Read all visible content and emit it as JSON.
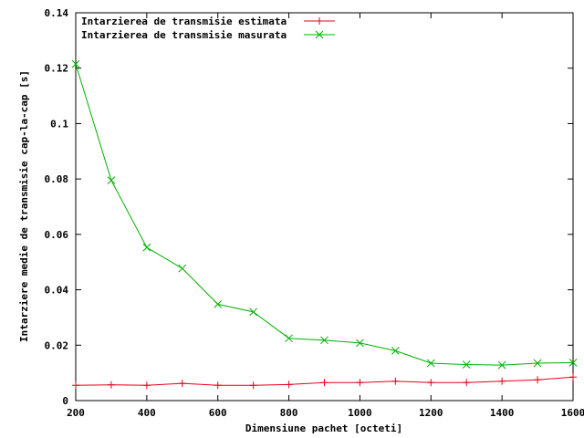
{
  "chart_data": {
    "type": "line",
    "title": "",
    "xlabel": "Dimensiune pachet [octeti]",
    "ylabel": "Intarziere medie de transmisie cap-la-cap [s]",
    "xlim": [
      200,
      1600
    ],
    "ylim": [
      0,
      0.14
    ],
    "x_ticks": [
      200,
      400,
      600,
      800,
      1000,
      1200,
      1400,
      1600
    ],
    "x_tick_labels": [
      "200",
      "400",
      "600",
      "800",
      "1000",
      "1200",
      "1400",
      "1600"
    ],
    "y_ticks": [
      0,
      0.02,
      0.04,
      0.06,
      0.08,
      0.1,
      0.12,
      0.14
    ],
    "y_tick_labels": [
      "0",
      "0.02",
      "0.04",
      "0.06",
      "0.08",
      "0.1",
      "0.12",
      "0.14"
    ],
    "grid": false,
    "legend_position": "top-left",
    "x": [
      200,
      300,
      400,
      500,
      600,
      700,
      800,
      900,
      1000,
      1100,
      1200,
      1300,
      1400,
      1500,
      1600
    ],
    "series": [
      {
        "name": "Intarzierea de transmisie estimata",
        "color": "#e8001c",
        "marker": "plus",
        "values": [
          0.0055,
          0.0057,
          0.0055,
          0.0062,
          0.0055,
          0.0055,
          0.0058,
          0.0065,
          0.0065,
          0.007,
          0.0065,
          0.0065,
          0.007,
          0.0075,
          0.0085
        ]
      },
      {
        "name": "Intarzierea de transmisie masurata",
        "color": "#00b000",
        "marker": "cross",
        "values": [
          0.1215,
          0.0795,
          0.0553,
          0.0477,
          0.0348,
          0.032,
          0.0225,
          0.0218,
          0.0208,
          0.018,
          0.0135,
          0.013,
          0.0128,
          0.0135,
          0.0137
        ]
      }
    ]
  }
}
